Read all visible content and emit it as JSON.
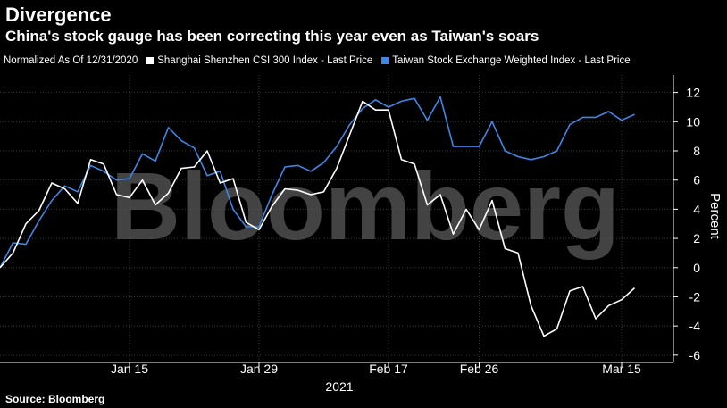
{
  "title": "Divergence",
  "subtitle": "China's stock gauge has been correcting this year even as Taiwan's soars",
  "legend": {
    "normalized": "Normalized As Of 12/31/2020",
    "series_a": "Shanghai Shenzhen CSI 300 Index - Last Price",
    "series_b": "Taiwan Stock Exchange Weighted Index - Last Price"
  },
  "watermark": "Bloomberg",
  "source": "Source: Bloomberg",
  "colors": {
    "background": "#000000",
    "csi300": "#ffffff",
    "taiex": "#3f86e6",
    "grid": "#3a3a3a"
  },
  "chart_data": {
    "type": "line",
    "x": [
      "2020-12-31",
      "2021-01-04",
      "2021-01-05",
      "2021-01-06",
      "2021-01-07",
      "2021-01-08",
      "2021-01-11",
      "2021-01-12",
      "2021-01-13",
      "2021-01-14",
      "2021-01-15",
      "2021-01-18",
      "2021-01-19",
      "2021-01-20",
      "2021-01-21",
      "2021-01-22",
      "2021-01-25",
      "2021-01-26",
      "2021-01-27",
      "2021-01-28",
      "2021-01-29",
      "2021-02-01",
      "2021-02-02",
      "2021-02-03",
      "2021-02-04",
      "2021-02-05",
      "2021-02-08",
      "2021-02-09",
      "2021-02-10",
      "2021-02-11",
      "2021-02-17",
      "2021-02-18",
      "2021-02-19",
      "2021-02-22",
      "2021-02-23",
      "2021-02-24",
      "2021-02-25",
      "2021-02-26",
      "2021-03-01",
      "2021-03-02",
      "2021-03-03",
      "2021-03-04",
      "2021-03-05",
      "2021-03-08",
      "2021-03-09",
      "2021-03-10",
      "2021-03-11",
      "2021-03-12",
      "2021-03-15",
      "2021-03-16",
      "2021-03-17",
      "2021-03-18",
      "2021-03-19"
    ],
    "x_tick_labels": [
      "Jan 15",
      "Jan 29",
      "Feb 17",
      "Feb 26",
      "Mar 15"
    ],
    "x_year_label": "2021",
    "ylabel": "Percent",
    "yticks": [
      -6,
      -4,
      -2,
      0,
      2,
      4,
      6,
      8,
      10,
      12
    ],
    "ylim": [
      -6.5,
      13.2
    ],
    "y_axis_position": "right",
    "series": [
      {
        "name": "Shanghai Shenzhen CSI 300 Index - Last Price",
        "color": "#ffffff",
        "values": [
          0,
          1.0,
          3.0,
          3.9,
          5.8,
          5.4,
          4.4,
          7.4,
          7.1,
          5.0,
          4.8,
          6.0,
          4.3,
          5.1,
          6.8,
          6.9,
          8.0,
          5.8,
          6.1,
          3.1,
          2.6,
          4.2,
          5.4,
          5.3,
          5.0,
          5.2,
          6.8,
          9.1,
          11.4,
          10.8,
          10.8,
          7.4,
          7.1,
          4.3,
          5.0,
          2.3,
          4.0,
          2.6,
          4.6,
          1.3,
          1.0,
          -2.6,
          -4.7,
          -4.2,
          -1.6,
          -1.3,
          -3.5,
          -2.6,
          -2.2,
          -1.4,
          null,
          null,
          null
        ]
      },
      {
        "name": "Taiwan Stock Exchange Weighted Index - Last Price",
        "color": "#3f86e6",
        "values": [
          0,
          1.7,
          1.6,
          3.2,
          4.6,
          5.6,
          5.2,
          7.0,
          6.6,
          6.0,
          6.1,
          7.8,
          7.3,
          9.6,
          8.7,
          8.2,
          6.3,
          6.6,
          4.0,
          2.8,
          2.8,
          5.0,
          6.9,
          7.0,
          6.6,
          7.2,
          8.3,
          9.8,
          10.9,
          11.5,
          11.0,
          11.4,
          11.6,
          10.1,
          11.7,
          8.3,
          8.3,
          8.3,
          10.0,
          8.0,
          7.6,
          7.4,
          7.6,
          8.0,
          9.8,
          10.3,
          10.3,
          10.7,
          10.1,
          10.5,
          null,
          null,
          null
        ]
      }
    ]
  }
}
